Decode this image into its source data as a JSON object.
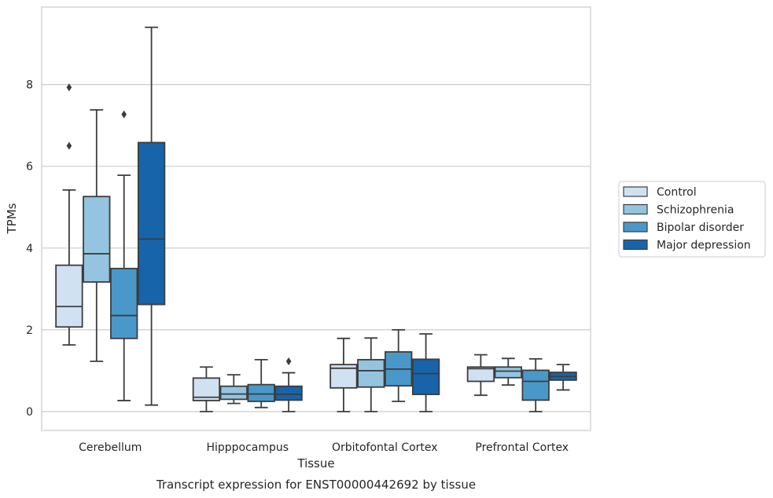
{
  "chart_data": {
    "type": "box",
    "title": "",
    "caption": "Transcript expression for ENST00000442692 by tissue",
    "xlabel": "Tissue",
    "ylabel": "TPMs",
    "ylim": [
      -0.45,
      9.8
    ],
    "yticks": [
      0,
      2,
      4,
      6,
      8
    ],
    "grid": "horizontal",
    "legend_position": "right",
    "categories": [
      "Cerebellum",
      "Hipppocampus",
      "Orbitofontal Cortex",
      "Prefrontal Cortex"
    ],
    "series": [
      {
        "name": "Control",
        "color": "#d0e1f2",
        "boxes": [
          {
            "whislo": 1.63,
            "q1": 2.07,
            "med": 2.57,
            "q3": 3.58,
            "whishi": 5.42,
            "fliers": [
              6.5,
              7.93
            ]
          },
          {
            "whislo": 0.0,
            "q1": 0.27,
            "med": 0.35,
            "q3": 0.82,
            "whishi": 1.09,
            "fliers": []
          },
          {
            "whislo": 0.0,
            "q1": 0.58,
            "med": 1.06,
            "q3": 1.15,
            "whishi": 1.79,
            "fliers": []
          },
          {
            "whislo": 0.4,
            "q1": 0.74,
            "med": 1.05,
            "q3": 1.09,
            "whishi": 1.39,
            "fliers": []
          }
        ]
      },
      {
        "name": "Schizophrenia",
        "color": "#94c4df",
        "boxes": [
          {
            "whislo": 1.23,
            "q1": 3.17,
            "med": 3.86,
            "q3": 5.26,
            "whishi": 7.38,
            "fliers": []
          },
          {
            "whislo": 0.2,
            "q1": 0.3,
            "med": 0.43,
            "q3": 0.62,
            "whishi": 0.9,
            "fliers": []
          },
          {
            "whislo": 0.0,
            "q1": 0.6,
            "med": 1.0,
            "q3": 1.27,
            "whishi": 1.8,
            "fliers": []
          },
          {
            "whislo": 0.65,
            "q1": 0.83,
            "med": 0.99,
            "q3": 1.09,
            "whishi": 1.3,
            "fliers": []
          }
        ]
      },
      {
        "name": "Bipolar disorder",
        "color": "#4a98c9",
        "boxes": [
          {
            "whislo": 0.27,
            "q1": 1.79,
            "med": 2.35,
            "q3": 3.5,
            "whishi": 5.78,
            "fliers": [
              7.27
            ]
          },
          {
            "whislo": 0.1,
            "q1": 0.25,
            "med": 0.43,
            "q3": 0.66,
            "whishi": 1.27,
            "fliers": []
          },
          {
            "whislo": 0.25,
            "q1": 0.63,
            "med": 1.04,
            "q3": 1.46,
            "whishi": 2.0,
            "fliers": []
          },
          {
            "whislo": 0.0,
            "q1": 0.28,
            "med": 0.74,
            "q3": 1.01,
            "whishi": 1.29,
            "fliers": []
          }
        ]
      },
      {
        "name": "Major depression",
        "color": "#1764ab",
        "boxes": [
          {
            "whislo": 0.16,
            "q1": 2.62,
            "med": 4.22,
            "q3": 6.58,
            "whishi": 9.4,
            "fliers": []
          },
          {
            "whislo": 0.0,
            "q1": 0.28,
            "med": 0.42,
            "q3": 0.62,
            "whishi": 0.95,
            "fliers": [
              1.23
            ]
          },
          {
            "whislo": 0.0,
            "q1": 0.42,
            "med": 0.93,
            "q3": 1.28,
            "whishi": 1.9,
            "fliers": []
          },
          {
            "whislo": 0.53,
            "q1": 0.77,
            "med": 0.86,
            "q3": 0.96,
            "whishi": 1.15,
            "fliers": []
          }
        ]
      }
    ]
  }
}
